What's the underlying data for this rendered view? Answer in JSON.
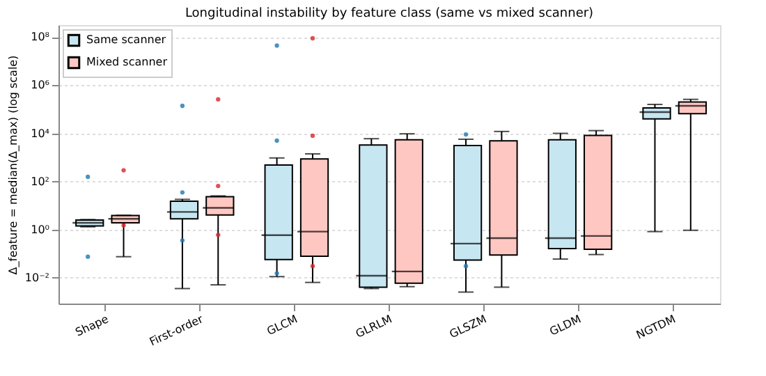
{
  "chart_data": {
    "type": "box",
    "title": "Longitudinal instability by feature class (same vs mixed scanner)",
    "ylabel": "Δ_feature = median(Δ_max) (log scale)",
    "categories": [
      "Shape",
      "First-order",
      "GLCM",
      "GLRLM",
      "GLSZM",
      "GLDM",
      "NGTDM"
    ],
    "series": [
      {
        "name": "Same scanner",
        "color": "#c6e6f2",
        "boxes": [
          {
            "low": 1.3,
            "q1": 1.4,
            "median": 1.9,
            "q3": 2.5,
            "high": 2.6,
            "outliers": [
              155,
              0.074
            ]
          },
          {
            "low": 0.0035,
            "q1": 2.8,
            "median": 5.4,
            "q3": 15,
            "high": 18,
            "outliers": [
              140000,
              35,
              0.35
            ]
          },
          {
            "low": 0.011,
            "q1": 0.056,
            "median": 0.58,
            "q3": 480,
            "high": 950,
            "outliers": [
              45000000,
              5000,
              0.015
            ]
          },
          {
            "low": 0.0035,
            "q1": 0.004,
            "median": 0.012,
            "q3": 3300,
            "high": 6000
          },
          {
            "low": 0.0025,
            "q1": 0.054,
            "median": 0.26,
            "q3": 3100,
            "high": 5700,
            "outliers": [
              9000,
              0.03
            ]
          },
          {
            "low": 0.059,
            "q1": 0.16,
            "median": 0.44,
            "q3": 5400,
            "high": 10000
          },
          {
            "low": 0.82,
            "q1": 40000,
            "median": 77000,
            "q3": 115000,
            "high": 160000
          }
        ]
      },
      {
        "name": "Mixed scanner",
        "color": "#ffc7c2",
        "boxes": [
          {
            "low": 0.074,
            "q1": 1.9,
            "median": 2.8,
            "q3": 3.8,
            "high": 3.9,
            "outliers": [
              290,
              1.5
            ]
          },
          {
            "low": 0.005,
            "q1": 4,
            "median": 8,
            "q3": 23,
            "high": 25,
            "outliers": [
              260000,
              65,
              0.6
            ]
          },
          {
            "low": 0.0063,
            "q1": 0.077,
            "median": 0.82,
            "q3": 870,
            "high": 1400,
            "outliers": [
              90000000,
              8000,
              0.03
            ]
          },
          {
            "low": 0.0042,
            "q1": 0.0058,
            "median": 0.018,
            "q3": 5400,
            "high": 9600
          },
          {
            "low": 0.004,
            "q1": 0.087,
            "median": 0.44,
            "q3": 4900,
            "high": 12000
          },
          {
            "low": 0.091,
            "q1": 0.15,
            "median": 0.54,
            "q3": 8200,
            "high": 13000
          },
          {
            "low": 0.93,
            "q1": 66000,
            "median": 140000,
            "q3": 200000,
            "high": 260000
          }
        ]
      }
    ],
    "log": true,
    "ylim": [
      0.00083,
      320000000
    ],
    "yticks": [
      {
        "value": 0.01,
        "label": "10⁻²"
      },
      {
        "value": 1,
        "label": "10⁰"
      },
      {
        "value": 100,
        "label": "10²"
      },
      {
        "value": 10000,
        "label": "10⁴"
      },
      {
        "value": 1000000,
        "label": "10⁶"
      },
      {
        "value": 100000000,
        "label": "10⁸"
      }
    ],
    "grid": "y",
    "legend": "top left"
  }
}
